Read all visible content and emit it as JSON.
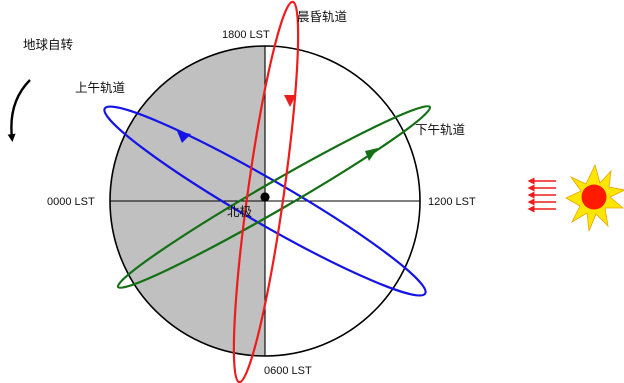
{
  "diagram": {
    "labels": {
      "earth_rotation": "地球自转",
      "north_pole": "北极",
      "dawn_dusk_orbit": "晨昏轨道",
      "am_orbit": "上午轨道",
      "pm_orbit": "下午轨道",
      "t0000": "0000 LST",
      "t0600": "0600 LST",
      "t1200": "1200 LST",
      "t1800": "1800 LST"
    },
    "colors": {
      "night_side": "#c0c0c0",
      "day_side": "#ffffff",
      "outline": "#000000",
      "dawn_dusk_orbit": "#ee1c1c",
      "am_orbit": "#1414e6",
      "pm_orbit": "#147014",
      "sun_core": "#ff1a00",
      "sun_rays": "#ffe600",
      "sun_arrows": "#ee1c1c"
    },
    "icons": [
      "sun-icon",
      "sunlight-arrows-icon",
      "rotation-arrow-icon",
      "north-pole-dot-icon"
    ]
  }
}
